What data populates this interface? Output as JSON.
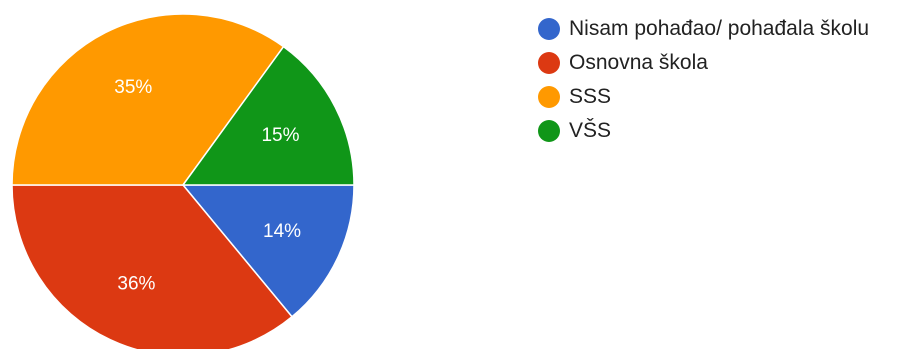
{
  "chart_data": {
    "type": "pie",
    "title": "",
    "categories": [
      "Nisam pohađao/ pohađala školu",
      "Osnovna škola",
      "SSS",
      "VŠS"
    ],
    "values": [
      14,
      36,
      35,
      15
    ],
    "value_labels": [
      "14%",
      "36%",
      "35%",
      "15%"
    ],
    "colors": [
      "#3366cc",
      "#dc3912",
      "#ff9900",
      "#109618"
    ],
    "legend_position": "right"
  }
}
